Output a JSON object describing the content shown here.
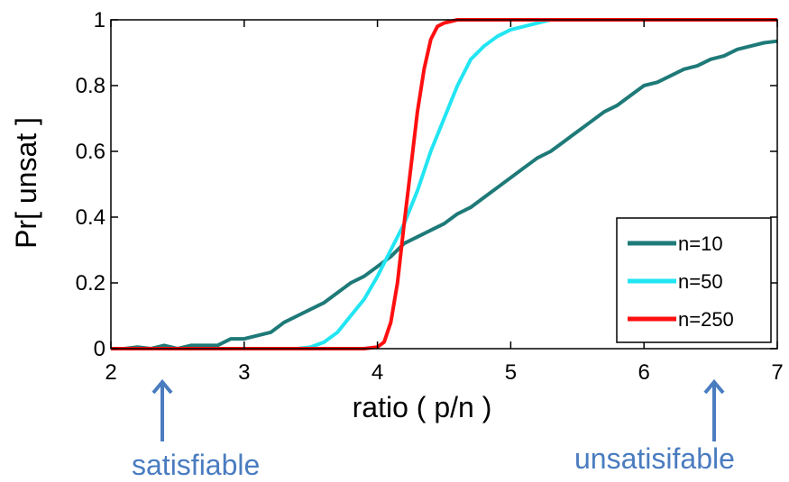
{
  "chart_data": {
    "type": "line",
    "xlabel": "ratio  ( p/n )",
    "ylabel": "Pr[ unsat ]",
    "xlim": [
      2,
      7
    ],
    "ylim": [
      0,
      1
    ],
    "xticks": [
      "2",
      "3",
      "4",
      "5",
      "6",
      "7"
    ],
    "yticks": [
      "0",
      "0.2",
      "0.4",
      "0.6",
      "0.8",
      "1"
    ],
    "grid": false,
    "legend_position": "bottom-right",
    "series": [
      {
        "name": "n=10",
        "color": "#1e7a78",
        "x": [
          2.0,
          2.1,
          2.2,
          2.3,
          2.4,
          2.5,
          2.6,
          2.7,
          2.8,
          2.9,
          3.0,
          3.1,
          3.2,
          3.3,
          3.4,
          3.5,
          3.6,
          3.7,
          3.8,
          3.9,
          4.0,
          4.1,
          4.2,
          4.3,
          4.4,
          4.5,
          4.6,
          4.7,
          4.8,
          4.9,
          5.0,
          5.1,
          5.2,
          5.3,
          5.4,
          5.5,
          5.6,
          5.7,
          5.8,
          5.9,
          6.0,
          6.1,
          6.2,
          6.3,
          6.4,
          6.5,
          6.6,
          6.7,
          6.8,
          6.9,
          7.0
        ],
        "y": [
          0.0,
          0.0,
          0.005,
          0.0,
          0.01,
          0.0,
          0.01,
          0.01,
          0.01,
          0.03,
          0.03,
          0.04,
          0.05,
          0.08,
          0.1,
          0.12,
          0.14,
          0.17,
          0.2,
          0.22,
          0.25,
          0.28,
          0.32,
          0.34,
          0.36,
          0.38,
          0.41,
          0.43,
          0.46,
          0.49,
          0.52,
          0.55,
          0.58,
          0.6,
          0.63,
          0.66,
          0.69,
          0.72,
          0.74,
          0.77,
          0.8,
          0.81,
          0.83,
          0.85,
          0.86,
          0.88,
          0.89,
          0.91,
          0.92,
          0.93,
          0.935
        ]
      },
      {
        "name": "n=50",
        "color": "#22e5f2",
        "x": [
          2.0,
          2.5,
          3.0,
          3.4,
          3.5,
          3.6,
          3.7,
          3.8,
          3.9,
          4.0,
          4.1,
          4.2,
          4.3,
          4.4,
          4.5,
          4.6,
          4.7,
          4.8,
          4.9,
          5.0,
          5.1,
          5.2,
          5.3,
          5.5,
          6.0,
          6.5,
          7.0
        ],
        "y": [
          0.0,
          0.0,
          0.0,
          0.0,
          0.005,
          0.02,
          0.05,
          0.1,
          0.15,
          0.22,
          0.3,
          0.38,
          0.48,
          0.6,
          0.7,
          0.8,
          0.88,
          0.92,
          0.95,
          0.97,
          0.98,
          0.99,
          1.0,
          1.0,
          1.0,
          1.0,
          1.0
        ]
      },
      {
        "name": "n=250",
        "color": "#ff1010",
        "x": [
          2.0,
          3.0,
          3.9,
          4.0,
          4.05,
          4.1,
          4.15,
          4.2,
          4.25,
          4.3,
          4.35,
          4.4,
          4.45,
          4.5,
          4.6,
          5.0,
          6.0,
          7.0
        ],
        "y": [
          0.0,
          0.0,
          0.0,
          0.005,
          0.02,
          0.08,
          0.2,
          0.38,
          0.55,
          0.72,
          0.85,
          0.94,
          0.98,
          0.99,
          1.0,
          1.0,
          1.0,
          1.0
        ]
      }
    ]
  },
  "annotations": {
    "left_label": "satisfiable",
    "right_label": "unsatisifable",
    "arrow_color": "#4a7cc0"
  }
}
